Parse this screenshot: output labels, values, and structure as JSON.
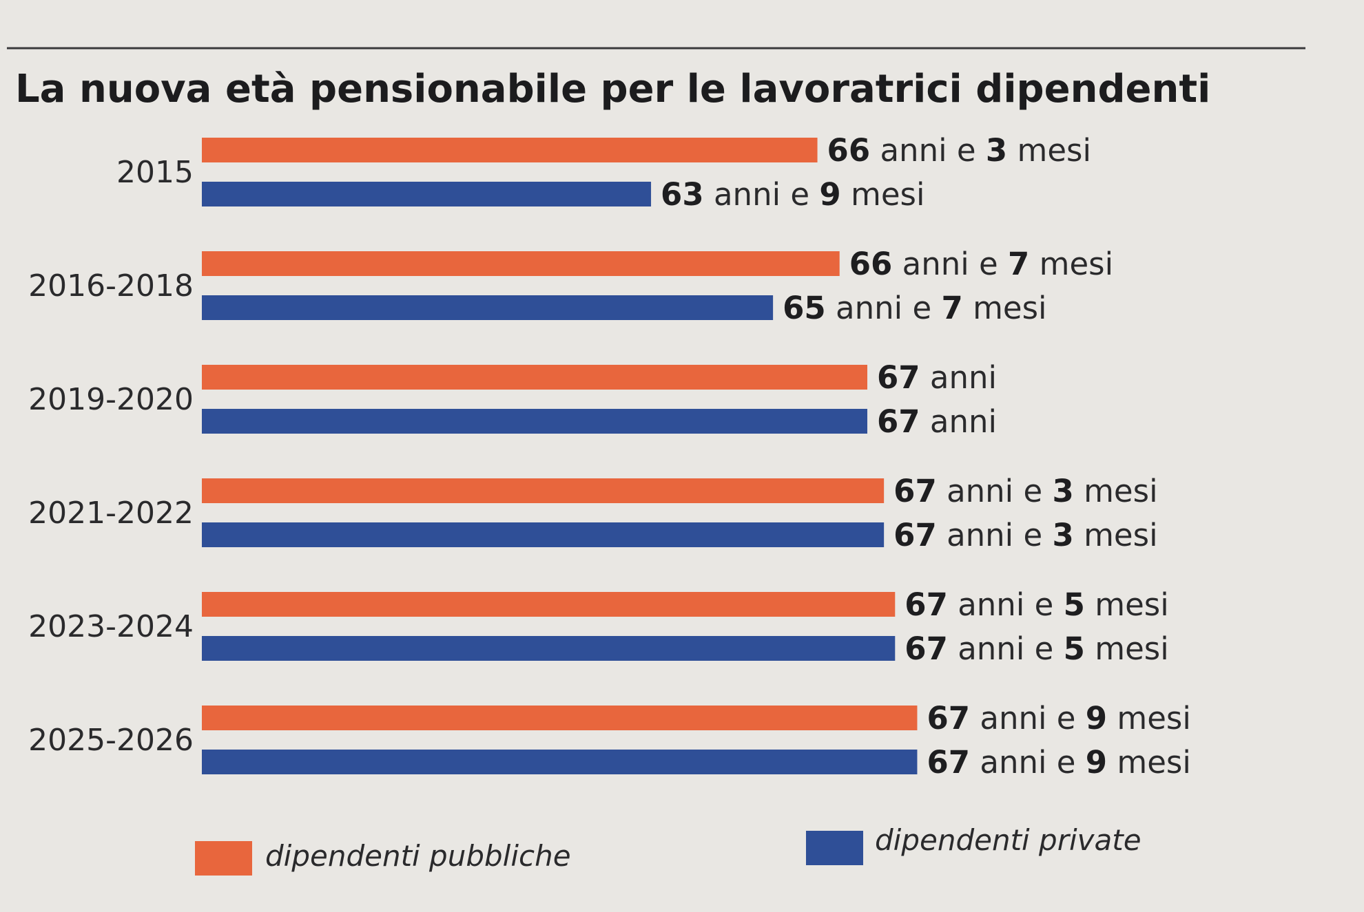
{
  "chart_data": {
    "type": "bar",
    "orientation": "horizontal",
    "title": "La nuova età pensionabile per le lavoratrici dipendenti",
    "categories": [
      "2015",
      "2016-2018",
      "2019-2020",
      "2021-2022",
      "2023-2024",
      "2025-2026"
    ],
    "units": "anni",
    "series": [
      {
        "name": "dipendenti pubbliche",
        "color": "#e8663d",
        "values": [
          66.25,
          66.583,
          67,
          67.25,
          67.417,
          67.75
        ],
        "labels": [
          [
            [
              "66",
              true
            ],
            [
              " anni e ",
              false
            ],
            [
              "3",
              true
            ],
            [
              " mesi",
              false
            ]
          ],
          [
            [
              "66",
              true
            ],
            [
              " anni e ",
              false
            ],
            [
              "7",
              true
            ],
            [
              " mesi",
              false
            ]
          ],
          [
            [
              "67",
              true
            ],
            [
              " anni",
              false
            ]
          ],
          [
            [
              "67",
              true
            ],
            [
              " anni e ",
              false
            ],
            [
              "3",
              true
            ],
            [
              " mesi",
              false
            ]
          ],
          [
            [
              "67",
              true
            ],
            [
              " anni e ",
              false
            ],
            [
              "5",
              true
            ],
            [
              " mesi",
              false
            ]
          ],
          [
            [
              "67",
              true
            ],
            [
              " anni e ",
              false
            ],
            [
              "9",
              true
            ],
            [
              " mesi",
              false
            ]
          ]
        ]
      },
      {
        "name": "dipendenti private",
        "color": "#2f4f97",
        "values": [
          63.75,
          65.583,
          67,
          67.25,
          67.417,
          67.75
        ],
        "labels": [
          [
            [
              "63",
              true
            ],
            [
              " anni e ",
              false
            ],
            [
              "9",
              true
            ],
            [
              " mesi",
              false
            ]
          ],
          [
            [
              "65",
              true
            ],
            [
              " anni e ",
              false
            ],
            [
              "7",
              true
            ],
            [
              " mesi",
              false
            ]
          ],
          [
            [
              "67",
              true
            ],
            [
              " anni",
              false
            ]
          ],
          [
            [
              "67",
              true
            ],
            [
              " anni e ",
              false
            ],
            [
              "3",
              true
            ],
            [
              " mesi",
              false
            ]
          ],
          [
            [
              "67",
              true
            ],
            [
              " anni e ",
              false
            ],
            [
              "5",
              true
            ],
            [
              " mesi",
              false
            ]
          ],
          [
            [
              "67",
              true
            ],
            [
              " anni e ",
              false
            ],
            [
              "9",
              true
            ],
            [
              " mesi",
              false
            ]
          ]
        ]
      }
    ],
    "legend": {
      "position": "bottom",
      "items": [
        "dipendenti pubbliche",
        "dipendenti private"
      ]
    },
    "grid": false
  }
}
